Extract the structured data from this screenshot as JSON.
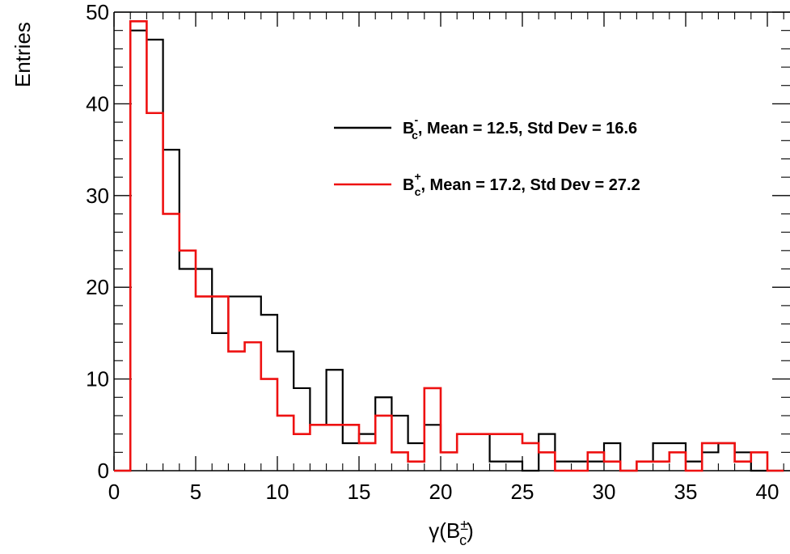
{
  "chart_data": {
    "type": "histogram",
    "xlabel": "γ(B±c)",
    "ylabel": "Entries",
    "xlim": [
      0,
      41.5
    ],
    "ylim": [
      0,
      50
    ],
    "x_ticks": [
      0,
      5,
      10,
      15,
      20,
      25,
      30,
      35,
      40
    ],
    "y_ticks": [
      0,
      10,
      20,
      30,
      40,
      50
    ],
    "bin_edges": [
      0,
      1,
      2,
      3,
      4,
      5,
      6,
      7,
      8,
      9,
      10,
      11,
      12,
      13,
      14,
      15,
      16,
      17,
      18,
      19,
      20,
      21,
      22,
      23,
      24,
      25,
      26,
      27,
      28,
      29,
      30,
      31,
      32,
      33,
      34,
      35,
      36,
      37,
      38,
      39,
      40,
      41
    ],
    "legend_position": "top-right",
    "series": [
      {
        "name": "B-c, Mean = 12.5, Std Dev = 16.6",
        "legend_label": {
          "base": "B",
          "sup": "-",
          "sub": "c",
          "rest": ", Mean = 12.5, Std Dev = 16.6"
        },
        "color": "#000000",
        "values": [
          0,
          48,
          47,
          35,
          22,
          22,
          15,
          19,
          19,
          17,
          13,
          9,
          5,
          11,
          3,
          4,
          8,
          6,
          3,
          5,
          2,
          4,
          4,
          1,
          1,
          0,
          4,
          1,
          1,
          1,
          3,
          0,
          1,
          3,
          3,
          1,
          2,
          3,
          2,
          0,
          0
        ]
      },
      {
        "name": "B+c, Mean = 17.2, Std Dev = 27.2",
        "legend_label": {
          "base": "B",
          "sup": "+",
          "sub": "c",
          "rest": ", Mean = 17.2, Std Dev = 27.2"
        },
        "color": "#ee1111",
        "values": [
          0,
          49,
          39,
          28,
          24,
          19,
          19,
          13,
          14,
          10,
          6,
          4,
          5,
          5,
          5,
          3,
          6,
          2,
          1,
          9,
          2,
          4,
          4,
          4,
          4,
          3,
          2,
          0,
          0,
          2,
          1,
          0,
          1,
          1,
          2,
          0,
          3,
          3,
          1,
          2,
          0
        ]
      }
    ]
  }
}
